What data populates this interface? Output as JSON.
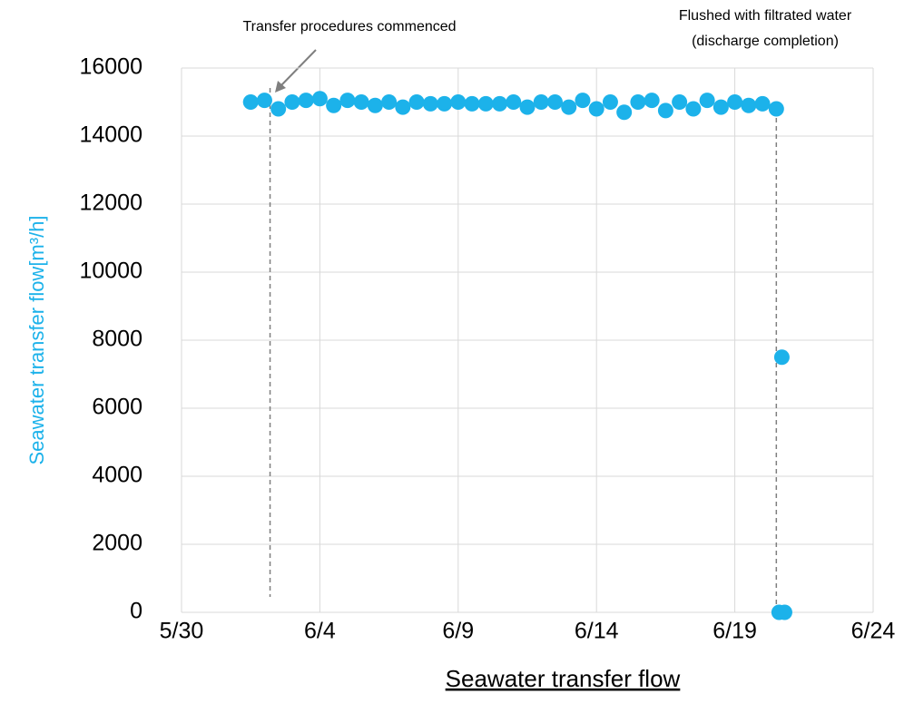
{
  "chart_data": {
    "type": "scatter",
    "y_label": "Seawater transfer flow[m³/h]",
    "x_label": "Seawater transfer flow",
    "color": "#1cb2ea",
    "grid": true,
    "xlim": [
      150,
      175
    ],
    "xticks": [
      {
        "value": 150,
        "label": "5/30"
      },
      {
        "value": 155,
        "label": "6/4"
      },
      {
        "value": 160,
        "label": "6/9"
      },
      {
        "value": 165,
        "label": "6/14"
      },
      {
        "value": 170,
        "label": "6/19"
      },
      {
        "value": 175,
        "label": "6/24"
      }
    ],
    "ylim": [
      0,
      16000
    ],
    "yticks": [
      0,
      2000,
      4000,
      6000,
      8000,
      10000,
      12000,
      14000,
      16000
    ],
    "x": [
      152.5,
      153,
      153.5,
      154,
      154.5,
      155,
      155.5,
      156,
      156.5,
      157,
      157.5,
      158,
      158.5,
      159,
      159.5,
      160,
      160.5,
      161,
      161.5,
      162,
      162.5,
      163,
      163.5,
      164,
      164.5,
      165,
      165.5,
      166,
      166.5,
      167,
      167.5,
      168,
      168.5,
      169,
      169.5,
      170,
      170.5,
      171,
      171.5,
      171.7,
      171.6,
      171.8
    ],
    "values": [
      15000,
      15050,
      14800,
      15000,
      15050,
      15100,
      14900,
      15050,
      15000,
      14900,
      15000,
      14850,
      15000,
      14950,
      14950,
      15000,
      14950,
      14950,
      14950,
      15000,
      14850,
      15000,
      15000,
      14850,
      15050,
      14800,
      15000,
      14700,
      15000,
      15050,
      14750,
      15000,
      14800,
      15050,
      14850,
      15000,
      14900,
      14950,
      14800,
      7500,
      0,
      0
    ],
    "annotations": [
      {
        "text": [
          "Transfer procedures commenced"
        ],
        "x": 153.2
      },
      {
        "text": [
          "Flushed with filtrated water",
          "(discharge completion)"
        ],
        "x": 171.5
      }
    ]
  }
}
